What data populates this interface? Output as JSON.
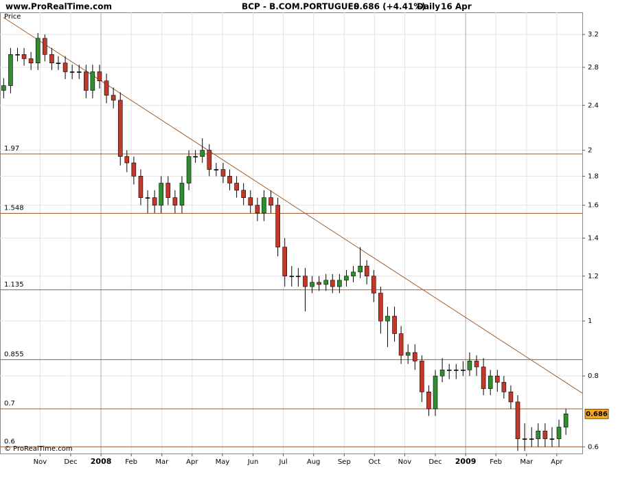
{
  "header": {
    "site": "www.ProRealTime.com",
    "instrument": "BCP - B.COM.PORTUGUES",
    "quote": "0.686 (+4.41%)",
    "period": "Daily",
    "date": "16 Apr"
  },
  "chart_data": {
    "type": "candlestick",
    "y_label": "Price",
    "copyright": "© ProRealTime.com",
    "log_y": true,
    "grid": true,
    "up_color": "#2f8f2f",
    "down_color": "#c0392b",
    "level_color": "#9c5a2a",
    "xlim": [
      2007.723,
      2009.32
    ],
    "ylim": [
      0.584,
      3.5
    ],
    "yticks": [
      0.6,
      0.8,
      1,
      1.2,
      1.4,
      1.6,
      1.8,
      2,
      2.4,
      2.8,
      3.2
    ],
    "xticks": [
      {
        "value": 2007.833,
        "label": "Nov"
      },
      {
        "value": 2007.917,
        "label": "Dec"
      },
      {
        "value": 2008,
        "label": "2008"
      },
      {
        "value": 2008.083,
        "label": "Feb"
      },
      {
        "value": 2008.167,
        "label": "Mar"
      },
      {
        "value": 2008.25,
        "label": "Apr"
      },
      {
        "value": 2008.333,
        "label": "May"
      },
      {
        "value": 2008.417,
        "label": "Jun"
      },
      {
        "value": 2008.5,
        "label": "Jul"
      },
      {
        "value": 2008.583,
        "label": "Aug"
      },
      {
        "value": 2008.667,
        "label": "Sep"
      },
      {
        "value": 2008.75,
        "label": "Oct"
      },
      {
        "value": 2008.833,
        "label": "Nov"
      },
      {
        "value": 2008.917,
        "label": "Dec"
      },
      {
        "value": 2009,
        "label": "2009"
      },
      {
        "value": 2009.083,
        "label": "Feb"
      },
      {
        "value": 2009.167,
        "label": "Mar"
      },
      {
        "value": 2009.25,
        "label": "Apr"
      }
    ],
    "levels": [
      1.97,
      1.548,
      1.135,
      0.855,
      0.7,
      0.6
    ],
    "trendline": {
      "x": [
        2007.732,
        2009.32
      ],
      "y": [
        3.43,
        0.746
      ]
    },
    "last_price": 0.686,
    "x": [
      2007.733,
      2007.752,
      2007.771,
      2007.789,
      2007.808,
      2007.827,
      2007.846,
      2007.865,
      2007.883,
      2007.902,
      2007.921,
      2007.94,
      2007.959,
      2007.977,
      2007.996,
      2008.015,
      2008.034,
      2008.053,
      2008.071,
      2008.09,
      2008.109,
      2008.128,
      2008.147,
      2008.165,
      2008.184,
      2008.203,
      2008.222,
      2008.241,
      2008.259,
      2008.278,
      2008.297,
      2008.316,
      2008.335,
      2008.353,
      2008.372,
      2008.391,
      2008.41,
      2008.429,
      2008.447,
      2008.466,
      2008.485,
      2008.504,
      2008.523,
      2008.541,
      2008.56,
      2008.579,
      2008.598,
      2008.617,
      2008.635,
      2008.654,
      2008.673,
      2008.692,
      2008.711,
      2008.729,
      2008.748,
      2008.767,
      2008.786,
      2008.805,
      2008.823,
      2008.842,
      2008.861,
      2008.88,
      2008.899,
      2008.917,
      2008.936,
      2008.955,
      2008.974,
      2008.993,
      2009.011,
      2009.03,
      2009.049,
      2009.068,
      2009.087,
      2009.105,
      2009.124,
      2009.143,
      2009.162,
      2009.181,
      2009.199,
      2009.218,
      2009.237,
      2009.256,
      2009.275
    ],
    "open": [
      2.55,
      2.6,
      2.95,
      2.95,
      2.9,
      2.85,
      3.15,
      2.95,
      2.85,
      2.85,
      2.75,
      2.75,
      2.75,
      2.55,
      2.75,
      2.65,
      2.5,
      2.45,
      1.95,
      1.9,
      1.8,
      1.65,
      1.65,
      1.6,
      1.75,
      1.65,
      1.6,
      1.75,
      1.95,
      1.95,
      2.0,
      1.85,
      1.85,
      1.8,
      1.75,
      1.7,
      1.65,
      1.6,
      1.55,
      1.65,
      1.6,
      1.35,
      1.2,
      1.2,
      1.2,
      1.15,
      1.17,
      1.16,
      1.18,
      1.15,
      1.18,
      1.2,
      1.22,
      1.25,
      1.2,
      1.12,
      1.0,
      1.02,
      0.95,
      0.87,
      0.88,
      0.85,
      0.75,
      0.7,
      0.8,
      0.82,
      0.82,
      0.82,
      0.82,
      0.85,
      0.83,
      0.76,
      0.8,
      0.78,
      0.75,
      0.72,
      0.62,
      0.62,
      0.62,
      0.64,
      0.62,
      0.62,
      0.65
    ],
    "high": [
      2.68,
      3.03,
      3.03,
      3.03,
      2.98,
      3.22,
      3.2,
      3.03,
      2.93,
      2.93,
      2.83,
      2.83,
      2.83,
      2.83,
      2.83,
      2.73,
      2.58,
      2.53,
      2.0,
      1.95,
      1.85,
      1.7,
      1.7,
      1.8,
      1.8,
      1.7,
      1.8,
      2.0,
      2.0,
      2.1,
      2.05,
      1.9,
      1.9,
      1.85,
      1.8,
      1.75,
      1.7,
      1.65,
      1.7,
      1.7,
      1.65,
      1.4,
      1.25,
      1.24,
      1.24,
      1.2,
      1.2,
      1.21,
      1.21,
      1.21,
      1.23,
      1.25,
      1.35,
      1.28,
      1.23,
      1.15,
      1.06,
      1.06,
      0.98,
      0.91,
      0.91,
      0.87,
      0.77,
      0.82,
      0.86,
      0.84,
      0.84,
      0.85,
      0.88,
      0.87,
      0.86,
      0.82,
      0.82,
      0.8,
      0.77,
      0.74,
      0.66,
      0.65,
      0.66,
      0.66,
      0.65,
      0.67,
      0.7
    ],
    "low": [
      2.47,
      2.52,
      2.87,
      2.82,
      2.77,
      2.77,
      2.87,
      2.77,
      2.77,
      2.67,
      2.67,
      2.67,
      2.47,
      2.47,
      2.57,
      2.42,
      2.37,
      1.88,
      1.83,
      1.74,
      1.6,
      1.55,
      1.55,
      1.55,
      1.6,
      1.55,
      1.55,
      1.7,
      1.9,
      1.9,
      1.8,
      1.8,
      1.75,
      1.7,
      1.65,
      1.6,
      1.55,
      1.5,
      1.5,
      1.55,
      1.3,
      1.15,
      1.15,
      1.15,
      1.04,
      1.12,
      1.13,
      1.13,
      1.12,
      1.12,
      1.15,
      1.17,
      1.19,
      1.16,
      1.08,
      0.95,
      0.9,
      0.92,
      0.84,
      0.84,
      0.82,
      0.72,
      0.68,
      0.68,
      0.78,
      0.79,
      0.79,
      0.8,
      0.8,
      0.8,
      0.74,
      0.74,
      0.75,
      0.73,
      0.7,
      0.59,
      0.59,
      0.6,
      0.6,
      0.6,
      0.6,
      0.6,
      0.63
    ],
    "close": [
      2.6,
      2.95,
      2.95,
      2.9,
      2.85,
      3.15,
      2.95,
      2.85,
      2.85,
      2.75,
      2.75,
      2.75,
      2.55,
      2.75,
      2.65,
      2.5,
      2.45,
      1.95,
      1.9,
      1.8,
      1.65,
      1.65,
      1.6,
      1.75,
      1.65,
      1.6,
      1.75,
      1.95,
      1.95,
      2.0,
      1.85,
      1.85,
      1.8,
      1.75,
      1.7,
      1.65,
      1.6,
      1.55,
      1.65,
      1.6,
      1.35,
      1.2,
      1.2,
      1.2,
      1.15,
      1.17,
      1.16,
      1.18,
      1.15,
      1.18,
      1.2,
      1.22,
      1.25,
      1.2,
      1.12,
      1.0,
      1.02,
      0.95,
      0.87,
      0.88,
      0.85,
      0.75,
      0.7,
      0.8,
      0.82,
      0.82,
      0.82,
      0.82,
      0.85,
      0.83,
      0.76,
      0.8,
      0.78,
      0.75,
      0.72,
      0.62,
      0.62,
      0.62,
      0.64,
      0.62,
      0.62,
      0.65,
      0.686
    ]
  }
}
